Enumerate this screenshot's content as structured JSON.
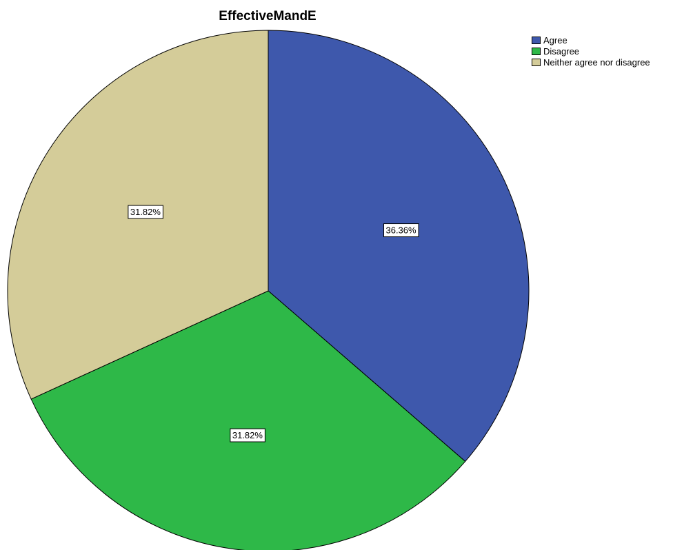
{
  "chart_data": {
    "type": "pie",
    "title": "EffectiveMandE",
    "slices": [
      {
        "label": "Agree",
        "value": 36.36,
        "value_label": "36.36%",
        "color": "#3e58ac"
      },
      {
        "label": "Disagree",
        "value": 31.82,
        "value_label": "31.82%",
        "color": "#2eb848"
      },
      {
        "label": "Neither agree nor disagree",
        "value": 31.82,
        "value_label": "31.82%",
        "color": "#d4cc99"
      }
    ],
    "legend": {
      "position": "top-right",
      "items": [
        {
          "label": "Agree",
          "color": "#3e58ac"
        },
        {
          "label": "Disagree",
          "color": "#2eb848"
        },
        {
          "label": "Neither agree nor disagree",
          "color": "#d4cc99"
        }
      ]
    }
  }
}
